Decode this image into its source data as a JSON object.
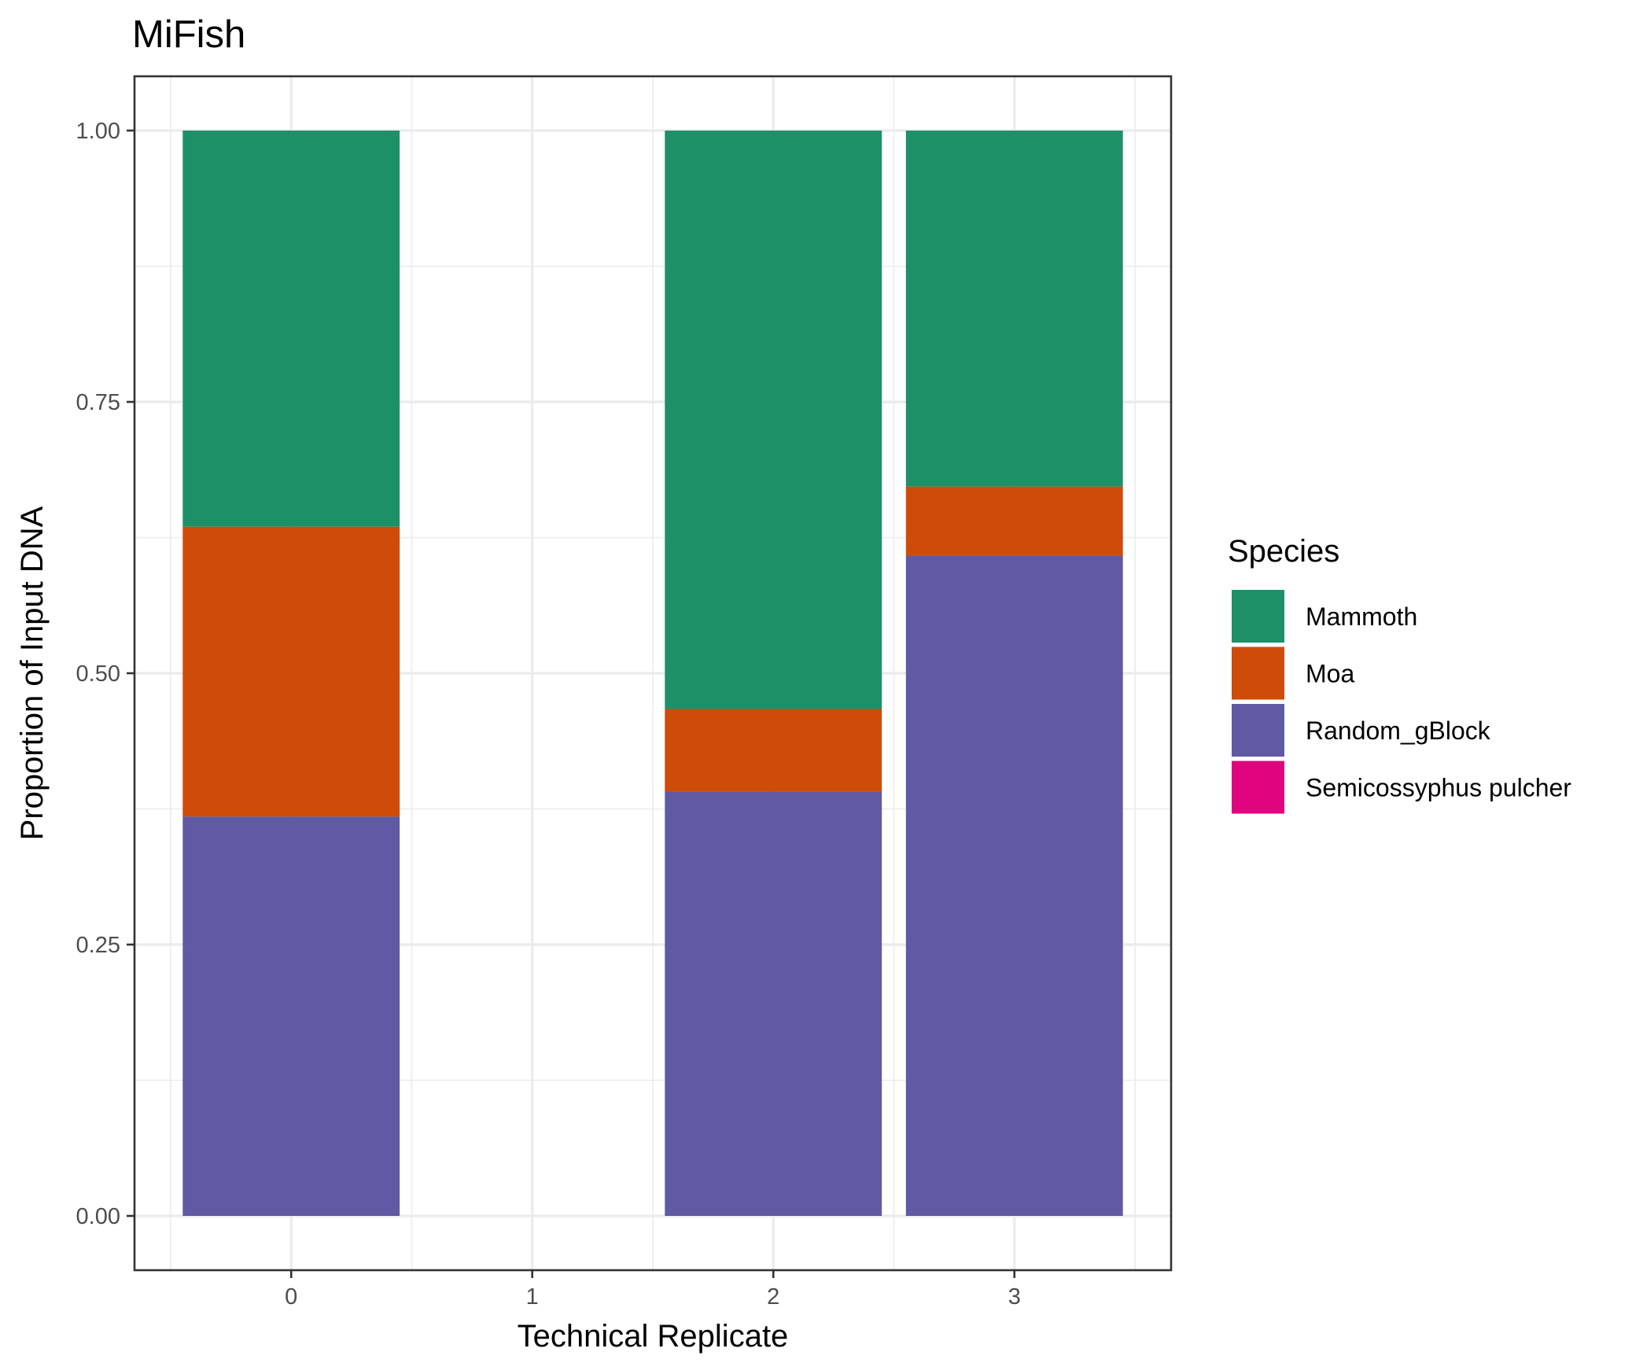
{
  "chart_data": {
    "type": "bar",
    "stacked": true,
    "title": "MiFish",
    "xlabel": "Technical Replicate",
    "ylabel": "Proportion of Input DNA",
    "categories": [
      "0",
      "1",
      "2",
      "3"
    ],
    "xlim": [
      -0.65,
      3.65
    ],
    "ylim": [
      -0.05,
      1.05
    ],
    "yticks": [
      0.0,
      0.25,
      0.5,
      0.75,
      1.0
    ],
    "ytick_labels": [
      "0.00",
      "0.25",
      "0.50",
      "0.75",
      "1.00"
    ],
    "grid": true,
    "legend": {
      "title": "Species",
      "position": "right"
    },
    "series": [
      {
        "name": "Random_gBlock",
        "color": "#6159A4",
        "values": [
          0.368,
          0,
          0.391,
          0.608
        ]
      },
      {
        "name": "Moa",
        "color": "#CE4B0A",
        "values": [
          0.267,
          0,
          0.076,
          0.064
        ]
      },
      {
        "name": "Mammoth",
        "color": "#1E9068",
        "values": [
          0.365,
          0,
          0.533,
          0.328
        ]
      },
      {
        "name": "Semicossyphus pulcher",
        "color": "#E0047E",
        "values": [
          0,
          0,
          0,
          0
        ]
      }
    ],
    "legend_order": [
      "Mammoth",
      "Moa",
      "Random_gBlock",
      "Semicossyphus pulcher"
    ]
  }
}
